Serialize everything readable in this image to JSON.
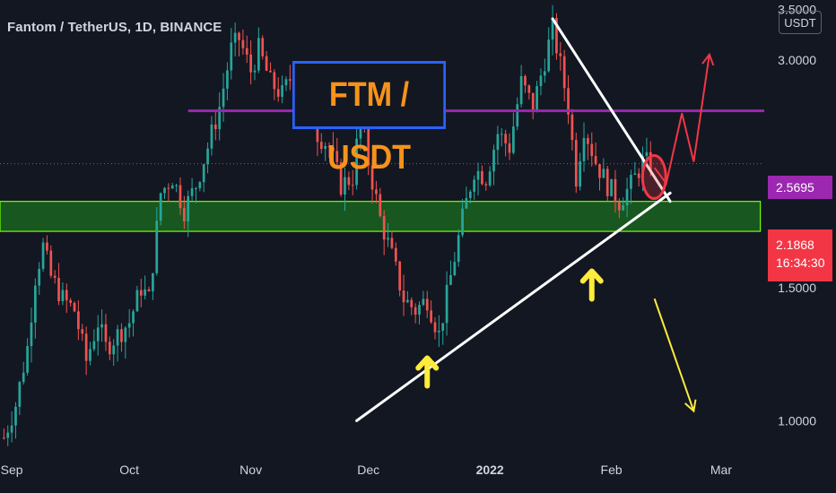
{
  "header": {
    "symbol_title": "Fantom / TetherUS, 1D, BINANCE",
    "currency": "USDT"
  },
  "annotation": {
    "caption": "FTM / USDT"
  },
  "price_scale": {
    "level_tag": "2.5695",
    "last_price": "2.1868",
    "countdown": "16:34:30"
  },
  "colors": {
    "background": "#131722",
    "bull_candle": "#26a69a",
    "bear_candle": "#ef5350",
    "resistance_line": "#9c27b0",
    "support_zone": "#1b5e20",
    "support_zone_border": "#76ff03",
    "trend_lines": "#ffffff",
    "arrows_up": "#ffeb3b",
    "bear_scenario": "#ffeb3b",
    "bull_scenario": "#f23645"
  },
  "chart_data": {
    "type": "candlestick",
    "x_axis": {
      "labels": [
        "Sep",
        "Oct",
        "Nov",
        "Dec",
        "2022",
        "Feb",
        "Mar"
      ],
      "label_dates": [
        "2021-09-01",
        "2021-10-01",
        "2021-11-01",
        "2021-12-01",
        "2022-01-01",
        "2022-02-01",
        "2022-03-01"
      ],
      "range": [
        "2021-08-29",
        "2022-03-12"
      ]
    },
    "y_axis": {
      "scale": "log",
      "ticks": [
        1.0,
        1.5,
        3.0,
        3.5
      ],
      "tick_labels": [
        "1.0000",
        "1.5000",
        "3.0000",
        "3.5000"
      ],
      "range": [
        0.9,
        3.6
      ]
    },
    "last_price": 2.1868,
    "candle_path": [
      [
        "2021-08-30",
        0.95
      ],
      [
        "2021-09-02",
        1.05
      ],
      [
        "2021-09-05",
        1.25
      ],
      [
        "2021-09-07",
        1.55
      ],
      [
        "2021-09-09",
        1.7
      ],
      [
        "2021-09-11",
        1.55
      ],
      [
        "2021-09-14",
        1.45
      ],
      [
        "2021-09-17",
        1.4
      ],
      [
        "2021-09-20",
        1.2
      ],
      [
        "2021-09-23",
        1.35
      ],
      [
        "2021-09-25",
        1.25
      ],
      [
        "2021-09-28",
        1.3
      ],
      [
        "2021-10-01",
        1.35
      ],
      [
        "2021-10-04",
        1.5
      ],
      [
        "2021-10-06",
        1.45
      ],
      [
        "2021-10-09",
        2.0
      ],
      [
        "2021-10-12",
        2.1
      ],
      [
        "2021-10-15",
        1.9
      ],
      [
        "2021-10-18",
        2.05
      ],
      [
        "2021-10-21",
        2.3
      ],
      [
        "2021-10-24",
        2.6
      ],
      [
        "2021-10-27",
        3.1
      ],
      [
        "2021-10-29",
        3.2
      ],
      [
        "2021-11-01",
        2.9
      ],
      [
        "2021-11-03",
        3.1
      ],
      [
        "2021-11-06",
        2.8
      ],
      [
        "2021-11-09",
        2.7
      ],
      [
        "2021-11-12",
        2.9
      ],
      [
        "2021-11-15",
        2.75
      ],
      [
        "2021-11-18",
        2.4
      ],
      [
        "2021-11-21",
        2.3
      ],
      [
        "2021-11-24",
        2.05
      ],
      [
        "2021-11-27",
        2.1
      ],
      [
        "2021-11-29",
        2.55
      ],
      [
        "2021-12-01",
        2.2
      ],
      [
        "2021-12-04",
        1.85
      ],
      [
        "2021-12-07",
        1.65
      ],
      [
        "2021-12-10",
        1.45
      ],
      [
        "2021-12-13",
        1.4
      ],
      [
        "2021-12-16",
        1.45
      ],
      [
        "2021-12-19",
        1.3
      ],
      [
        "2021-12-22",
        1.55
      ],
      [
        "2021-12-25",
        1.85
      ],
      [
        "2021-12-28",
        2.15
      ],
      [
        "2021-12-31",
        2.1
      ],
      [
        "2022-01-03",
        2.4
      ],
      [
        "2022-01-06",
        2.3
      ],
      [
        "2022-01-09",
        2.8
      ],
      [
        "2022-01-12",
        2.6
      ],
      [
        "2022-01-15",
        3.0
      ],
      [
        "2022-01-17",
        3.3
      ],
      [
        "2022-01-19",
        2.95
      ],
      [
        "2022-01-21",
        2.6
      ],
      [
        "2022-01-23",
        2.1
      ],
      [
        "2022-01-25",
        2.45
      ],
      [
        "2022-01-28",
        2.2
      ],
      [
        "2022-01-31",
        2.05
      ],
      [
        "2022-02-03",
        1.95
      ],
      [
        "2022-02-06",
        2.05
      ],
      [
        "2022-02-09",
        2.2
      ],
      [
        "2022-02-11",
        2.1868
      ]
    ],
    "horizontal_levels": [
      {
        "price": 2.5695,
        "from": "2021-10-16",
        "to": "2022-03-12"
      }
    ],
    "support_zone": {
      "from_price": 1.78,
      "to_price": 1.95,
      "from_date": "2021-08-29",
      "to_date": "2022-03-11"
    },
    "trend_lines": [
      {
        "from": [
          "2021-11-28",
          1.0
        ],
        "to": [
          "2022-02-16",
          2.0
        ]
      },
      {
        "from": [
          "2022-01-17",
          3.4
        ],
        "to": [
          "2022-02-16",
          1.95
        ]
      }
    ],
    "annotation_arrows_up": [
      {
        "date": "2021-12-16",
        "price": 1.22
      },
      {
        "date": "2022-01-27",
        "price": 1.59
      }
    ],
    "scenarios": [
      {
        "name": "",
        "points": [
          [
            "2022-02-12",
            1.45
          ],
          [
            "2022-02-22",
            1.03
          ]
        ]
      },
      {
        "name": "",
        "points": [
          [
            "2022-02-12",
            2.16
          ],
          [
            "2022-02-15",
            2.06
          ],
          [
            "2022-02-19",
            2.55
          ],
          [
            "2022-02-22",
            2.2
          ],
          [
            "2022-02-26",
            3.05
          ]
        ]
      }
    ],
    "highlight_circle": {
      "date": "2022-02-11",
      "price": 2.1
    }
  }
}
